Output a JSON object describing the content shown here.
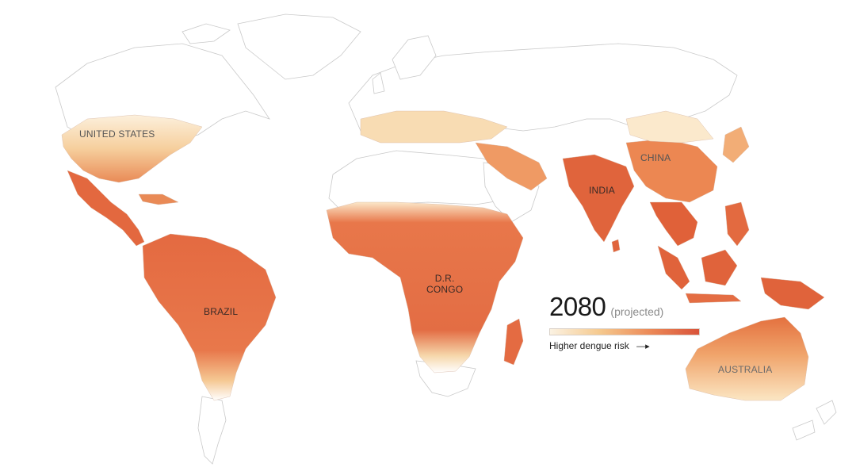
{
  "legend": {
    "year": "2080",
    "projected": "(projected)",
    "caption": "Higher dengue risk",
    "gradient": [
      "#fbf2e2",
      "#f5c98e",
      "#ec8a58",
      "#d9533a"
    ]
  },
  "labels": {
    "united_states": "UNITED STATES",
    "brazil": "BRAZIL",
    "dr_congo": "D.R.\nCONGO",
    "india": "INDIA",
    "china": "CHINA",
    "australia": "AUSTRALIA"
  },
  "colors": {
    "land_outline": "#c9c9c9",
    "low_risk": "#fbeccd",
    "mid_risk": "#f2b07a",
    "high_risk": "#e2673f",
    "very_high_risk": "#d8532f"
  }
}
